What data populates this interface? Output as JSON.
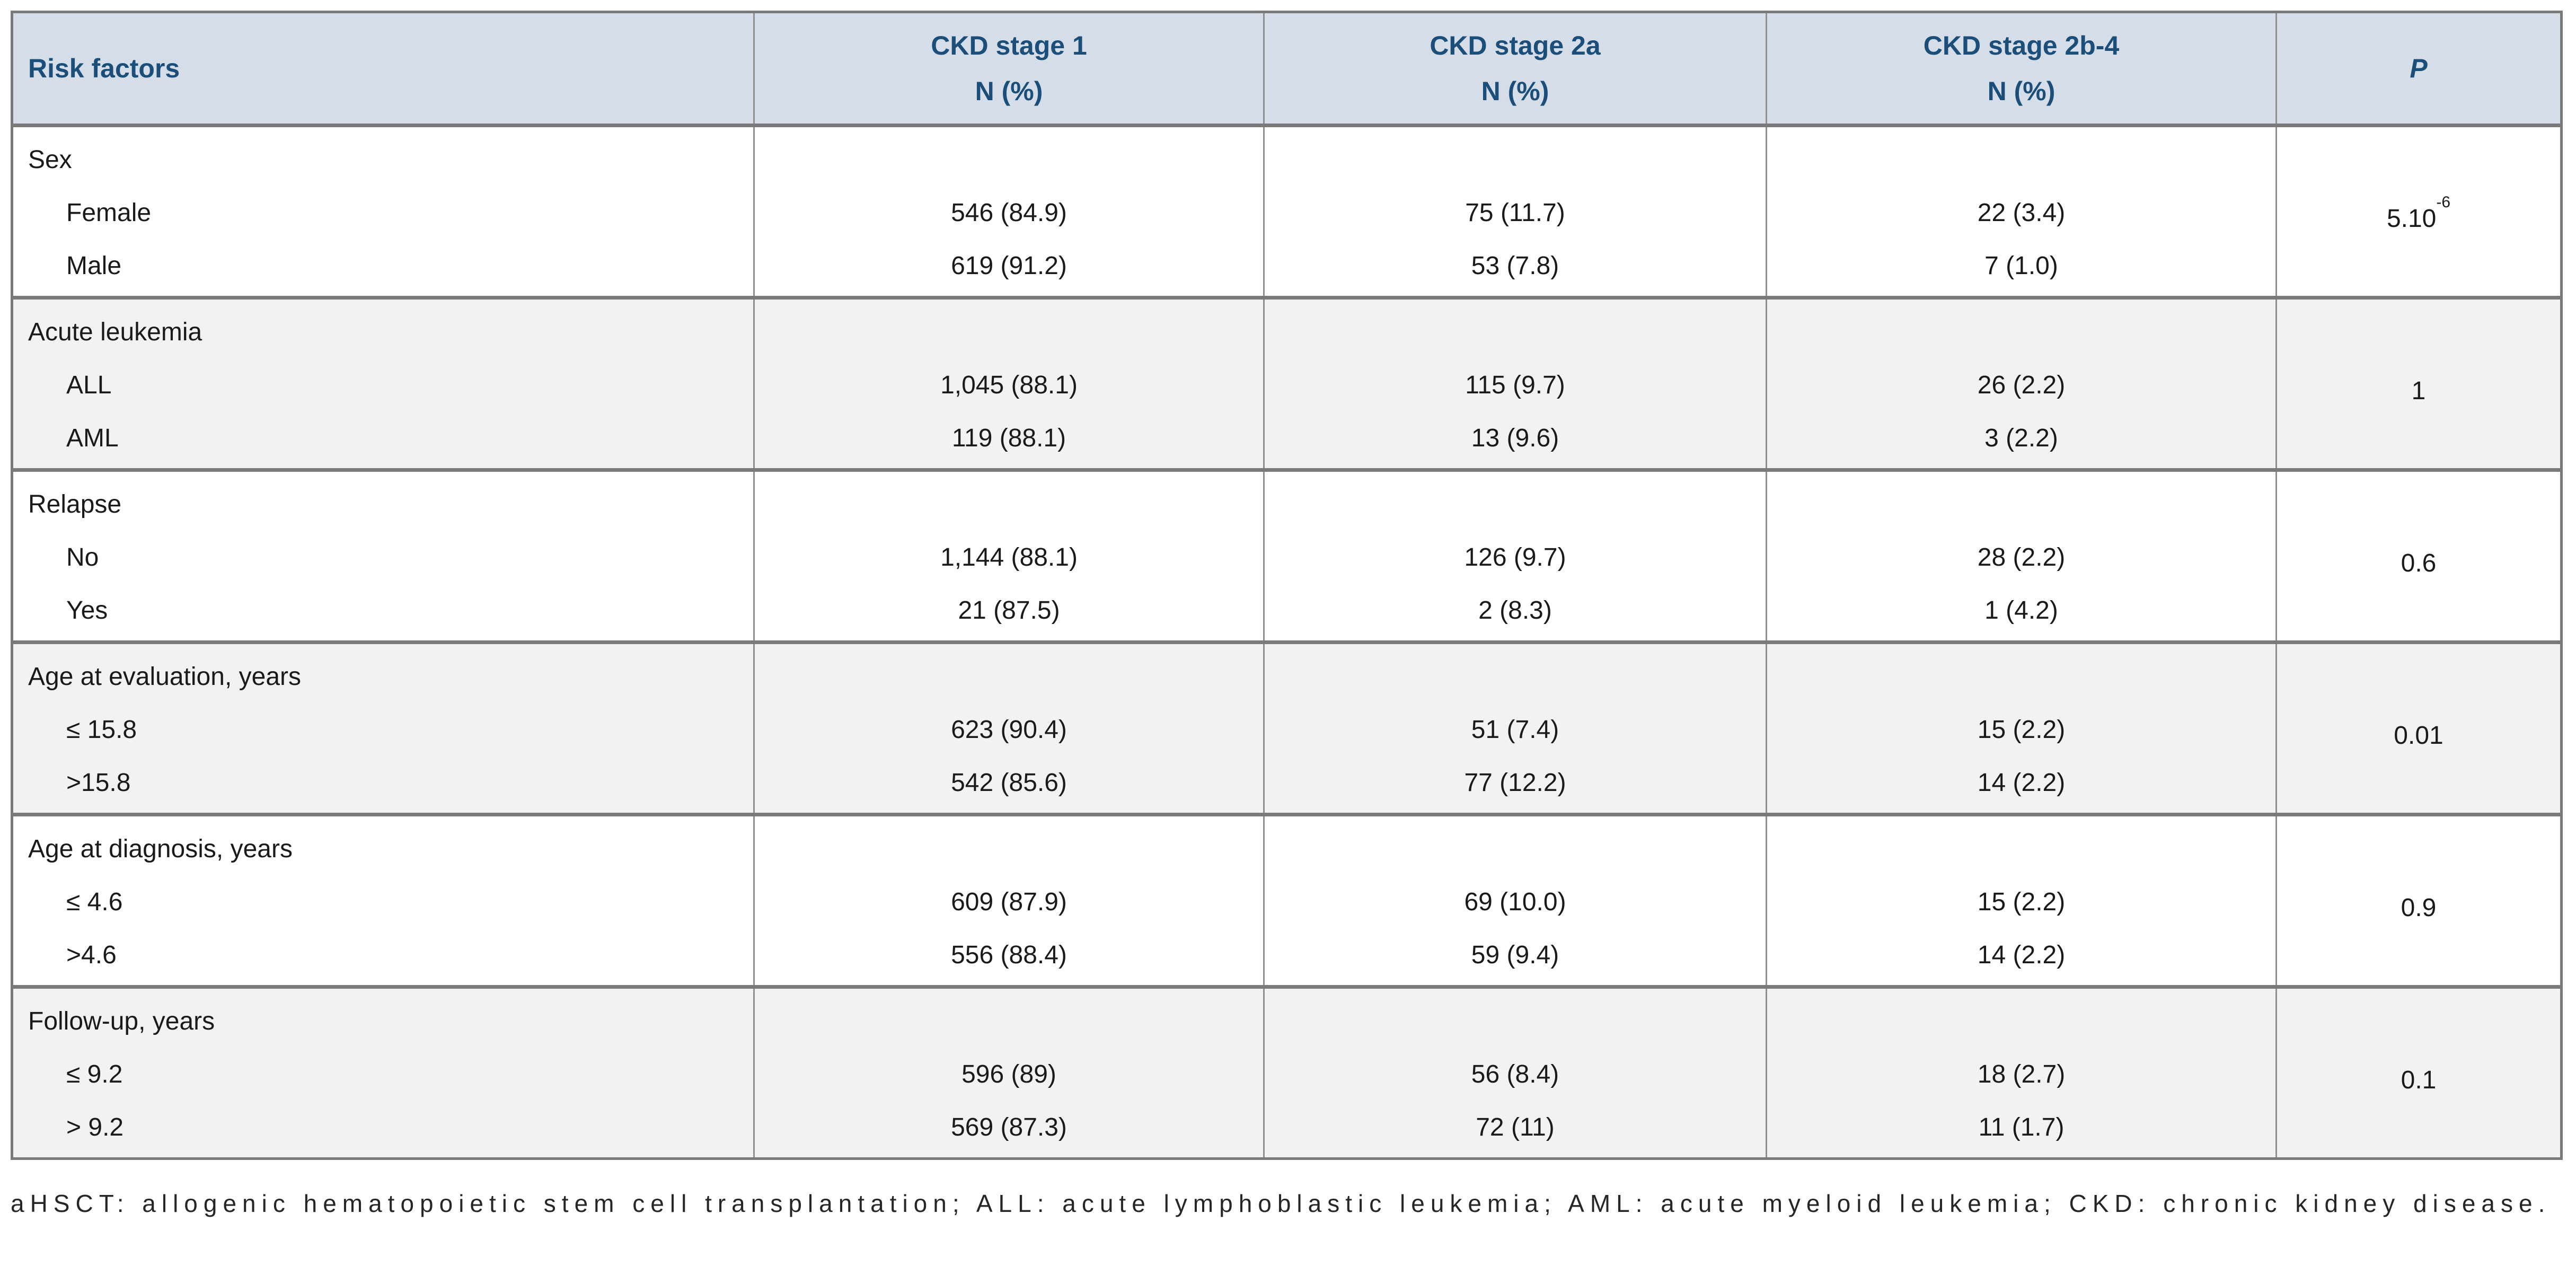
{
  "colors": {
    "header_bg": "#d5dee8",
    "header_text": "#1b4e79",
    "band_bg": "#f2f2f2",
    "border_thin": "#8f8f8f",
    "border_thick": "#7a7a7a",
    "body_text": "#1a1a1a"
  },
  "table": {
    "header": {
      "risk_factors": "Risk factors",
      "columns": [
        {
          "label": "CKD stage 1",
          "sub": "N (%)"
        },
        {
          "label": "CKD stage 2a",
          "sub": "N (%)"
        },
        {
          "label": "CKD stage 2b-4",
          "sub": "N (%)"
        }
      ],
      "p": "P"
    },
    "groups": [
      {
        "label": "Sex",
        "rows": [
          {
            "name": "Female",
            "ckd1": "546 (84.9)",
            "ckd2a": "75 (11.7)",
            "ckd2b4": "22 (3.4)"
          },
          {
            "name": "Male",
            "ckd1": "619 (91.2)",
            "ckd2a": "53 (7.8)",
            "ckd2b4": "7 (1.0)"
          }
        ],
        "p": "5.10",
        "p_sup": "-6"
      },
      {
        "label": "Acute leukemia",
        "rows": [
          {
            "name": "ALL",
            "ckd1": "1,045 (88.1)",
            "ckd2a": "115 (9.7)",
            "ckd2b4": "26 (2.2)"
          },
          {
            "name": "AML",
            "ckd1": "119 (88.1)",
            "ckd2a": "13 (9.6)",
            "ckd2b4": "3 (2.2)"
          }
        ],
        "p": "1",
        "p_sup": ""
      },
      {
        "label": "Relapse",
        "rows": [
          {
            "name": "No",
            "ckd1": "1,144 (88.1)",
            "ckd2a": "126 (9.7)",
            "ckd2b4": "28 (2.2)"
          },
          {
            "name": "Yes",
            "ckd1": "21 (87.5)",
            "ckd2a": "2 (8.3)",
            "ckd2b4": "1 (4.2)"
          }
        ],
        "p": "0.6",
        "p_sup": ""
      },
      {
        "label": "Age at evaluation, years",
        "rows": [
          {
            "name": "≤ 15.8",
            "ckd1": "623 (90.4)",
            "ckd2a": "51 (7.4)",
            "ckd2b4": "15 (2.2)"
          },
          {
            "name": ">15.8",
            "ckd1": "542 (85.6)",
            "ckd2a": "77 (12.2)",
            "ckd2b4": "14 (2.2)"
          }
        ],
        "p": "0.01",
        "p_sup": ""
      },
      {
        "label": "Age at diagnosis, years",
        "rows": [
          {
            "name": "≤ 4.6",
            "ckd1": "609 (87.9)",
            "ckd2a": "69 (10.0)",
            "ckd2b4": "15 (2.2)"
          },
          {
            "name": ">4.6",
            "ckd1": "556 (88.4)",
            "ckd2a": "59 (9.4)",
            "ckd2b4": "14 (2.2)"
          }
        ],
        "p": "0.9",
        "p_sup": ""
      },
      {
        "label": "Follow-up, years",
        "rows": [
          {
            "name": "≤ 9.2",
            "ckd1": "596 (89)",
            "ckd2a": "56 (8.4)",
            "ckd2b4": "18 (2.7)"
          },
          {
            "name": "> 9.2",
            "ckd1": "569 (87.3)",
            "ckd2a": "72 (11)",
            "ckd2b4": "11 (1.7)"
          }
        ],
        "p": "0.1",
        "p_sup": ""
      }
    ]
  },
  "footnote": "aHSCT: allogenic hematopoietic stem cell transplantation; ALL: acute lymphoblastic leukemia; AML: acute myeloid leukemia; CKD: chronic kidney disease."
}
